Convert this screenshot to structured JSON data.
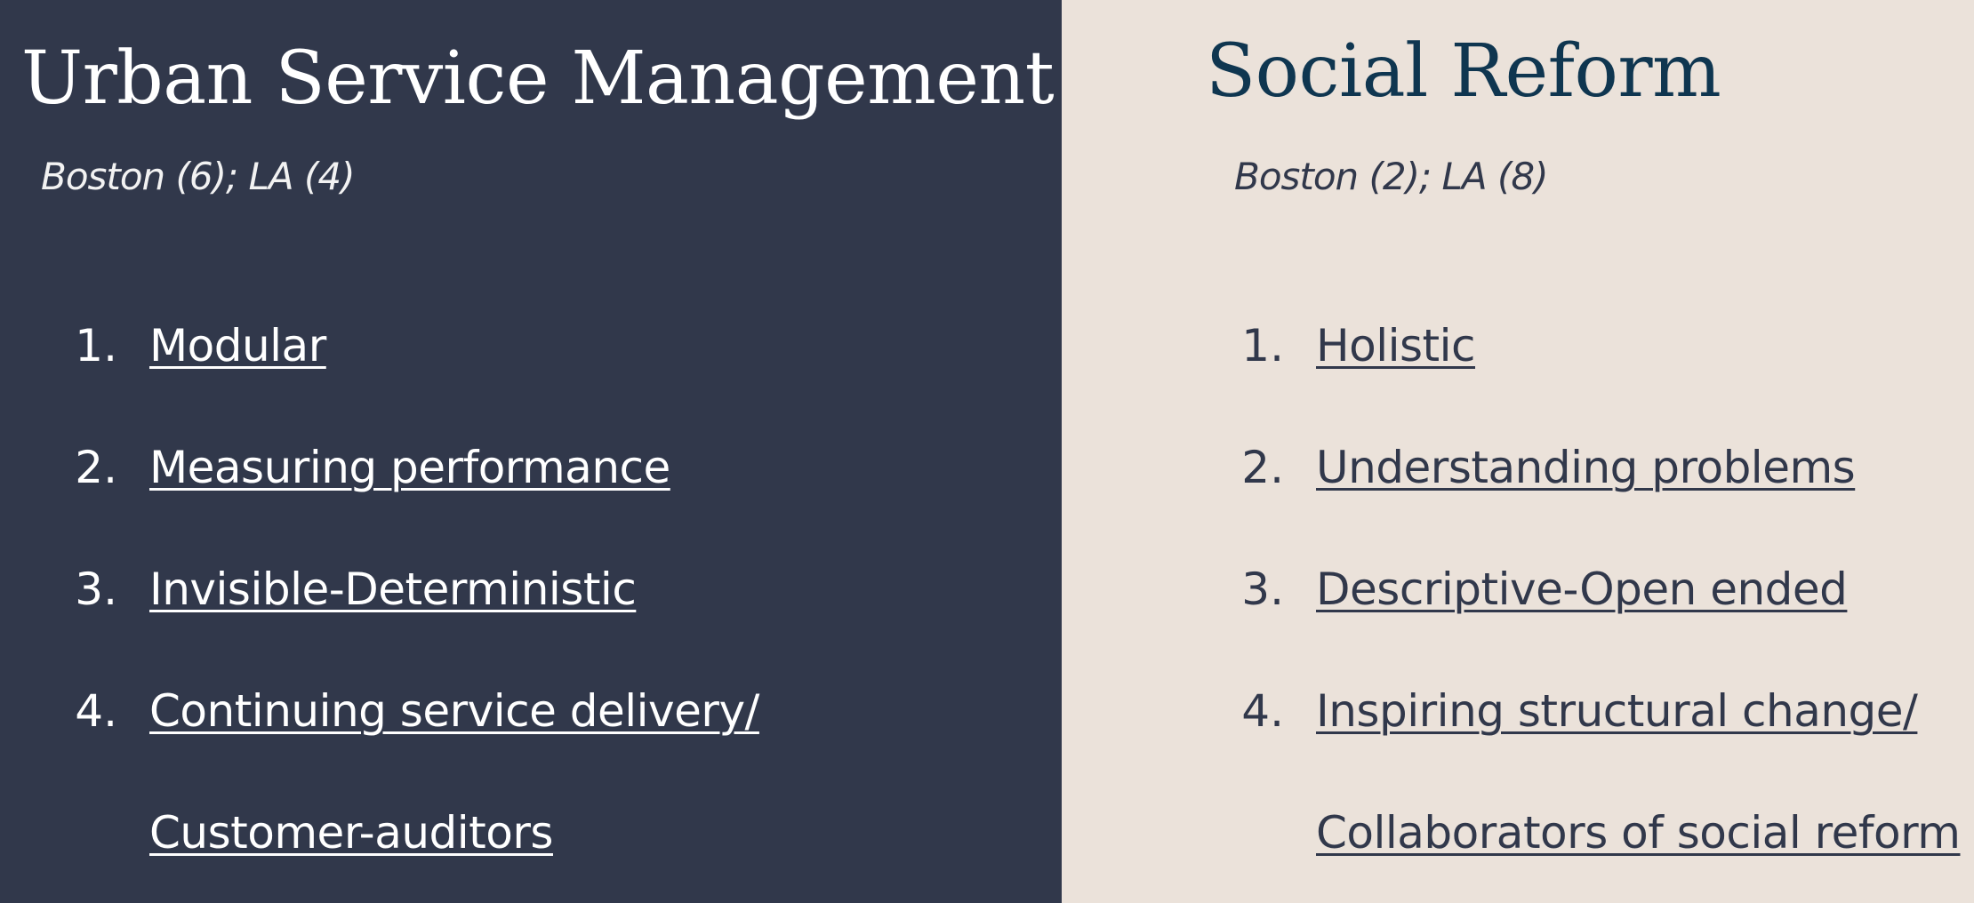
{
  "left": {
    "title": "Urban Service Management",
    "subtitle": "Boston (6); LA (4)",
    "items": [
      {
        "num": "1.",
        "text": "Modular"
      },
      {
        "num": "2.",
        "text": "Measuring performance"
      },
      {
        "num": "3.",
        "text": "Invisible-Deterministic"
      },
      {
        "num": "4.",
        "text": "Continuing service delivery/",
        "cont": "Customer-auditors"
      }
    ],
    "colors": {
      "background": "#31384b",
      "text": "#ffffff"
    }
  },
  "right": {
    "title": "Social Reform",
    "subtitle": "Boston (2); LA (8)",
    "items": [
      {
        "num": "1.",
        "text": "Holistic"
      },
      {
        "num": "2.",
        "text": "Understanding problems"
      },
      {
        "num": "3.",
        "text": "Descriptive-Open ended"
      },
      {
        "num": "4.",
        "text": "Inspiring structural change/",
        "cont": "Collaborators of social reform"
      }
    ],
    "colors": {
      "background": "#ebe2da",
      "text": "#31384b",
      "title": "#0f3650"
    }
  }
}
